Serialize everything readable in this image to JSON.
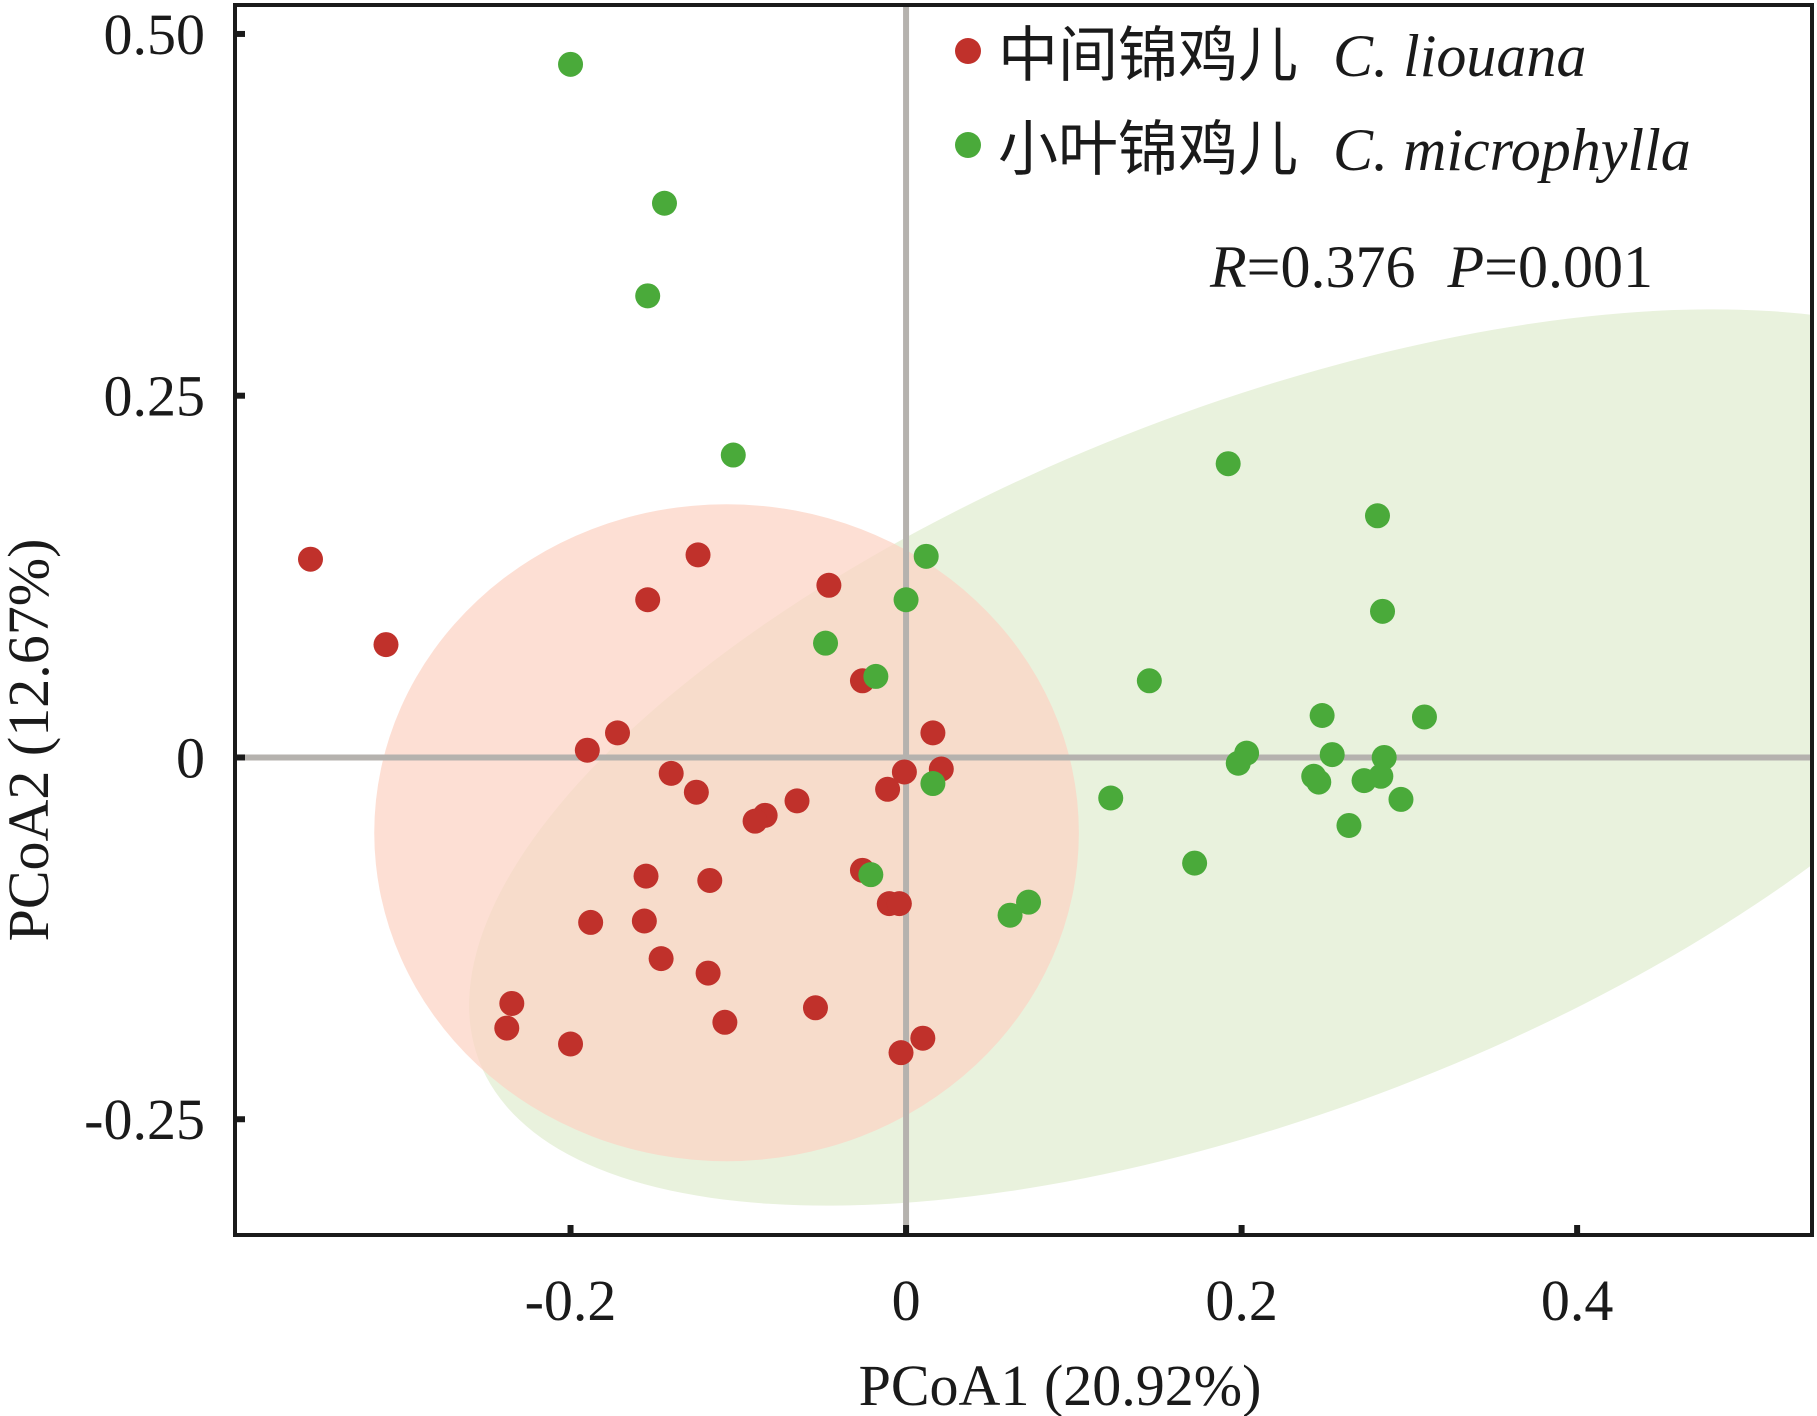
{
  "chart_data": {
    "type": "scatter",
    "title": "",
    "xlabel": "PCoA1 (20.92%)",
    "ylabel": "PCoA2 (12.67%)",
    "xlim": [
      -0.4,
      0.54
    ],
    "ylim": [
      -0.33,
      0.52
    ],
    "xticks": [
      {
        "value": -0.2,
        "label": "-0.2"
      },
      {
        "value": 0,
        "label": "0"
      },
      {
        "value": 0.2,
        "label": "0.2"
      },
      {
        "value": 0.4,
        "label": "0.4"
      }
    ],
    "yticks": [
      {
        "value": 0.5,
        "label": "0.50"
      },
      {
        "value": 0.25,
        "label": "0.25"
      },
      {
        "value": 0,
        "label": "0"
      },
      {
        "value": -0.25,
        "label": "-0.25"
      }
    ],
    "grid": false,
    "zero_lines": true,
    "legend_position": "top-right",
    "annotation": {
      "r_label": "R",
      "r_value": "=0.376",
      "p_label": "P",
      "p_value": "=0.001"
    },
    "series": [
      {
        "name": "中间锦鸡儿 C. liouana",
        "name_cn": "中间锦鸡儿",
        "name_latin": "C. liouana",
        "color": "#c0312b",
        "ellipse": {
          "cx": -0.107,
          "cy": -0.052,
          "rx": 0.21,
          "ry": 0.227,
          "angle": 0,
          "fill": "#fcd3c3"
        },
        "points": [
          [
            -0.355,
            0.137
          ],
          [
            -0.31,
            0.078
          ],
          [
            -0.124,
            0.14
          ],
          [
            -0.154,
            0.109
          ],
          [
            -0.046,
            0.119
          ],
          [
            -0.026,
            0.053
          ],
          [
            0.016,
            0.017
          ],
          [
            -0.19,
            0.005
          ],
          [
            -0.172,
            0.017
          ],
          [
            -0.14,
            -0.011
          ],
          [
            -0.125,
            -0.024
          ],
          [
            -0.065,
            -0.03
          ],
          [
            -0.084,
            -0.04
          ],
          [
            -0.09,
            -0.044
          ],
          [
            -0.011,
            -0.022
          ],
          [
            -0.001,
            -0.01
          ],
          [
            0.021,
            -0.008
          ],
          [
            -0.155,
            -0.082
          ],
          [
            -0.117,
            -0.085
          ],
          [
            -0.026,
            -0.078
          ],
          [
            -0.01,
            -0.101
          ],
          [
            -0.004,
            -0.101
          ],
          [
            -0.188,
            -0.114
          ],
          [
            -0.156,
            -0.113
          ],
          [
            -0.146,
            -0.139
          ],
          [
            -0.118,
            -0.149
          ],
          [
            -0.235,
            -0.17
          ],
          [
            -0.238,
            -0.187
          ],
          [
            -0.2,
            -0.198
          ],
          [
            -0.108,
            -0.183
          ],
          [
            -0.054,
            -0.173
          ],
          [
            -0.003,
            -0.204
          ],
          [
            0.01,
            -0.194
          ]
        ]
      },
      {
        "name": "小叶锦鸡儿 C. microphylla",
        "name_cn": "小叶锦鸡儿",
        "name_latin": "C. microphylla",
        "color": "#4aaa3a",
        "ellipse": {
          "cx": 0.217,
          "cy": 0.0,
          "rx": 0.505,
          "ry": 0.244,
          "angle": -21,
          "fill": "#e9f2dd"
        },
        "points": [
          [
            -0.2,
            0.479
          ],
          [
            -0.144,
            0.383
          ],
          [
            -0.154,
            0.319
          ],
          [
            -0.103,
            0.209
          ],
          [
            0.192,
            0.203
          ],
          [
            0.281,
            0.167
          ],
          [
            0.012,
            0.139
          ],
          [
            0.0,
            0.109
          ],
          [
            0.284,
            0.101
          ],
          [
            -0.048,
            0.079
          ],
          [
            -0.018,
            0.056
          ],
          [
            0.145,
            0.053
          ],
          [
            0.248,
            0.029
          ],
          [
            0.309,
            0.028
          ],
          [
            0.203,
            0.003
          ],
          [
            0.254,
            0.002
          ],
          [
            0.285,
            0.0
          ],
          [
            0.198,
            -0.004
          ],
          [
            0.243,
            -0.013
          ],
          [
            0.246,
            -0.017
          ],
          [
            0.273,
            -0.016
          ],
          [
            0.283,
            -0.013
          ],
          [
            0.295,
            -0.029
          ],
          [
            0.122,
            -0.028
          ],
          [
            0.264,
            -0.047
          ],
          [
            0.016,
            -0.018
          ],
          [
            -0.021,
            -0.081
          ],
          [
            0.172,
            -0.073
          ],
          [
            0.073,
            -0.1
          ],
          [
            0.062,
            -0.109
          ]
        ]
      }
    ]
  }
}
